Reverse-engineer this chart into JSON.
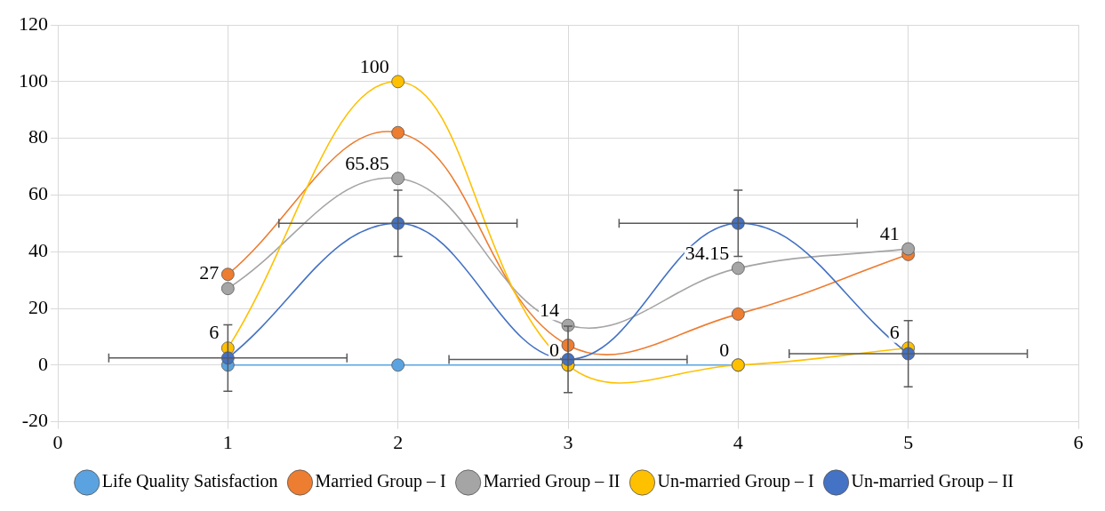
{
  "chart_data": {
    "type": "line",
    "xlim": [
      0,
      6
    ],
    "xticks": [
      0,
      1,
      2,
      3,
      4,
      5,
      6
    ],
    "ylim": [
      -20,
      120
    ],
    "yticks": [
      -20,
      0,
      20,
      40,
      60,
      80,
      100,
      120
    ],
    "grid": true,
    "legend": "bottom",
    "marker": "circle",
    "line_style": "solid",
    "series": [
      {
        "name": "Life Quality Satisfaction",
        "color": "#5ba3e0",
        "x": [
          1,
          2,
          3,
          4
        ],
        "values": [
          0,
          0,
          0,
          0
        ]
      },
      {
        "name": "Married Group – I",
        "color": "#ed7d31",
        "x": [
          1,
          2,
          3,
          4,
          5
        ],
        "values": [
          32,
          82,
          7,
          18,
          39
        ]
      },
      {
        "name": "Married Group – II",
        "color": "#a5a5a5",
        "x": [
          1,
          2,
          3,
          4,
          5
        ],
        "values": [
          27,
          65.85,
          14,
          34.15,
          41
        ],
        "value_labels": [
          "27",
          "65.85",
          "14",
          "34.15",
          "41"
        ]
      },
      {
        "name": "Un-married Group – I",
        "color": "#ffc000",
        "x": [
          1,
          2,
          3,
          4,
          5
        ],
        "values": [
          6,
          100,
          0,
          0,
          6
        ],
        "value_labels": [
          "6",
          "100",
          "0",
          "0",
          "6"
        ]
      },
      {
        "name": "Un-married Group – II",
        "color": "#4472c4",
        "x": [
          1,
          2,
          3,
          4,
          5
        ],
        "values": [
          2.5,
          50,
          2,
          50,
          4
        ],
        "errors": [
          11.7,
          11.7,
          11.7,
          11.7,
          11.7
        ],
        "xerrors": [
          0.7,
          0.7,
          0.7,
          0.7,
          0.7
        ]
      }
    ]
  }
}
